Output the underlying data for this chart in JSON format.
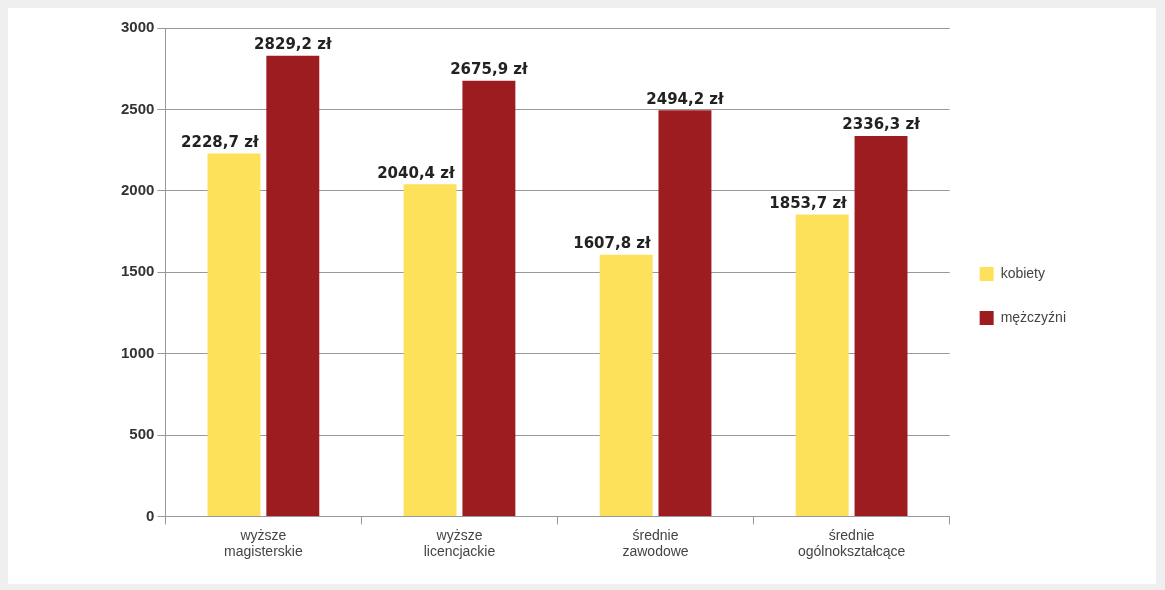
{
  "chart_data": {
    "type": "bar",
    "categories": [
      "wyższe magisterskie",
      "wyższe licencjackie",
      "średnie zawodowe",
      "średnie ogólnokształcące"
    ],
    "series": [
      {
        "name": "kobiety",
        "color": "#fde15a",
        "values": [
          2228.7,
          2040.4,
          1607.8,
          1853.7
        ],
        "value_labels": [
          "2228,7 zł",
          "2040,4 zł",
          "1607,8 zł",
          "1853,7 zł"
        ]
      },
      {
        "name": "mężczyźni",
        "color": "#9c1c1f",
        "values": [
          2829.2,
          2675.9,
          2494.2,
          2336.3
        ],
        "value_labels": [
          "2829,2 zł",
          "2675,9 zł",
          "2494,2 zł",
          "2336,3 zł"
        ]
      }
    ],
    "ylim": [
      0,
      3000
    ],
    "yticks": [
      0,
      500,
      1000,
      1500,
      2000,
      2500,
      3000
    ],
    "grid": "y",
    "legend": "right"
  }
}
